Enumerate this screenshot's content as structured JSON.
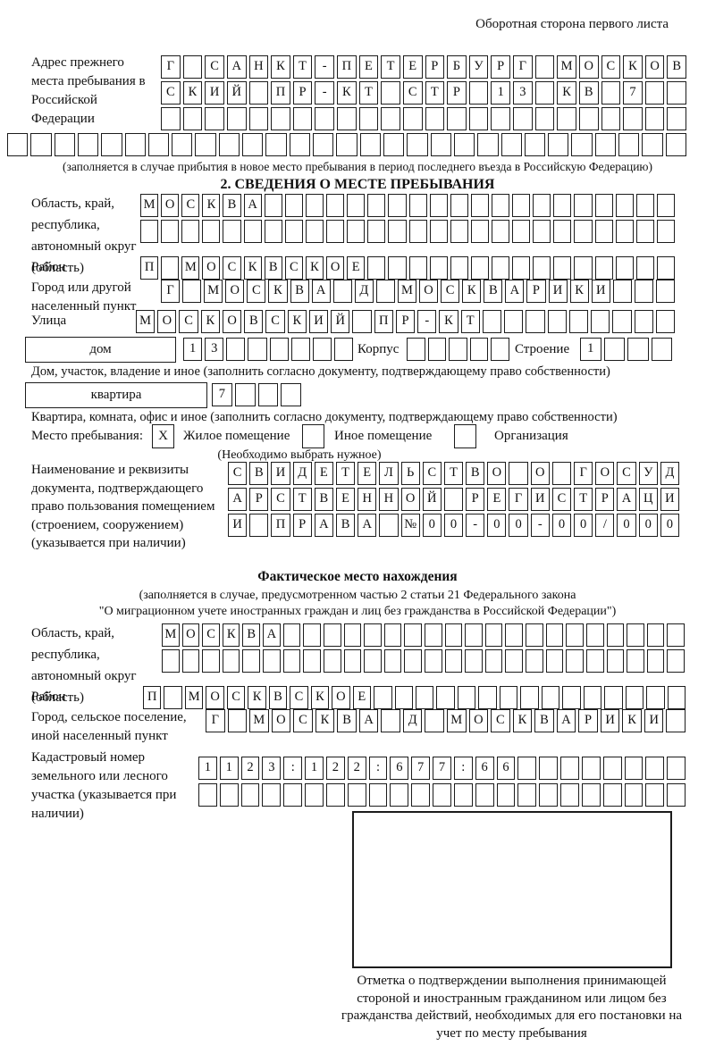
{
  "header": {
    "back_side_note": "Оборотная сторона первого листа"
  },
  "prev_address": {
    "label": "Адрес прежнего места пребывания в Российской Федерации",
    "rows": [
      {
        "count": 24,
        "text": "Г САНКТ-ПЕТЕРБУРГ МОСКОВ"
      },
      {
        "count": 24,
        "text": "СКИЙ ПР-КТ СТР 13 КВ 7"
      },
      {
        "count": 24,
        "text": ""
      },
      {
        "count": 29,
        "text": ""
      }
    ],
    "note": "(заполняется в случае прибытия в новое место пребывания в период последнего въезда в Российскую Федерацию)"
  },
  "section2": {
    "title": "2. СВЕДЕНИЯ О МЕСТЕ ПРЕБЫВАНИЯ",
    "region": {
      "label": "Область, край, республика, автономный округ (область)",
      "rows": [
        {
          "count": 26,
          "text": "МОСКВА"
        },
        {
          "count": 26,
          "text": ""
        }
      ]
    },
    "district": {
      "label": "Район",
      "row": {
        "count": 26,
        "text": "П МОСКВСКОЕ"
      }
    },
    "city": {
      "label": "Город или другой населенный пункт",
      "row": {
        "count": 24,
        "text": "Г МОСКВА Д МОСКВАРИКИ"
      }
    },
    "street": {
      "label": "Улица",
      "row": {
        "count": 25,
        "text": "МОСКОВСКИЙ ПР-КТ"
      }
    },
    "house": {
      "box_label": "дом",
      "cells": {
        "count": 8,
        "text": "13"
      },
      "korpus_label": "Корпус",
      "korpus_cells": {
        "count": 5,
        "text": ""
      },
      "stroenie_label": "Строение",
      "stroenie_cells": {
        "count": 4,
        "text": "1"
      },
      "note": "Дом, участок, владение и иное (заполнить согласно документу, подтверждающему право собственности)"
    },
    "apartment": {
      "box_label": "квартира",
      "cells": {
        "count": 4,
        "text": "7"
      },
      "note": "Квартира, комната, офис и иное (заполнить согласно документу, подтверждающему право собственности)"
    },
    "stay": {
      "label": "Место пребывания:",
      "options": [
        {
          "label": "Жилое помещение",
          "mark": "X"
        },
        {
          "label": "Иное помещение",
          "mark": ""
        },
        {
          "label": "Организация",
          "mark": ""
        }
      ],
      "note": "(Необходимо выбрать нужное)"
    },
    "doc": {
      "label": "Наименование и реквизиты документа, подтверждающего право пользования помещением (строением, сооружением) (указывается при наличии)",
      "rows": [
        {
          "count": 21,
          "text": "СВИДЕТЕЛЬСТВО О ГОСУД"
        },
        {
          "count": 21,
          "text": "АРСТВЕННОЙ РЕГИСТРАЦИ"
        },
        {
          "count": 21,
          "text": "И ПРАВА №00-00-00/000"
        }
      ]
    }
  },
  "actual_location": {
    "title": "Фактическое место нахождения",
    "note1": "(заполняется в случае, предусмотренном частью 2 статьи 21 Федерального закона",
    "note2": "\"О миграционном учете иностранных граждан и лиц без гражданства в Российской Федерации\")",
    "region": {
      "label": "Область, край, республика, автономный округ (область)",
      "rows": [
        {
          "count": 26,
          "text": "МОСКВА"
        },
        {
          "count": 26,
          "text": ""
        }
      ]
    },
    "district": {
      "label": "Район",
      "row": {
        "count": 26,
        "text": "П МОСКВСКОЕ"
      }
    },
    "city": {
      "label": "Город, сельское поселение, иной населенный пункт",
      "row": {
        "count": 22,
        "text": "Г МОСКВА Д МОСКВАРИКИ"
      }
    },
    "cadastral": {
      "label": "Кадастровый номер земельного или лесного участка (указывается при наличии)",
      "rows": [
        {
          "count": 23,
          "text": "1123:122:677:66"
        },
        {
          "count": 23,
          "text": ""
        }
      ]
    }
  },
  "stamp": {
    "caption": "Отметка о подтверждении выполнения принимающей стороной и иностранным гражданином или лицом без гражданства действий, необходимых для его постановки на учет по месту пребывания"
  }
}
